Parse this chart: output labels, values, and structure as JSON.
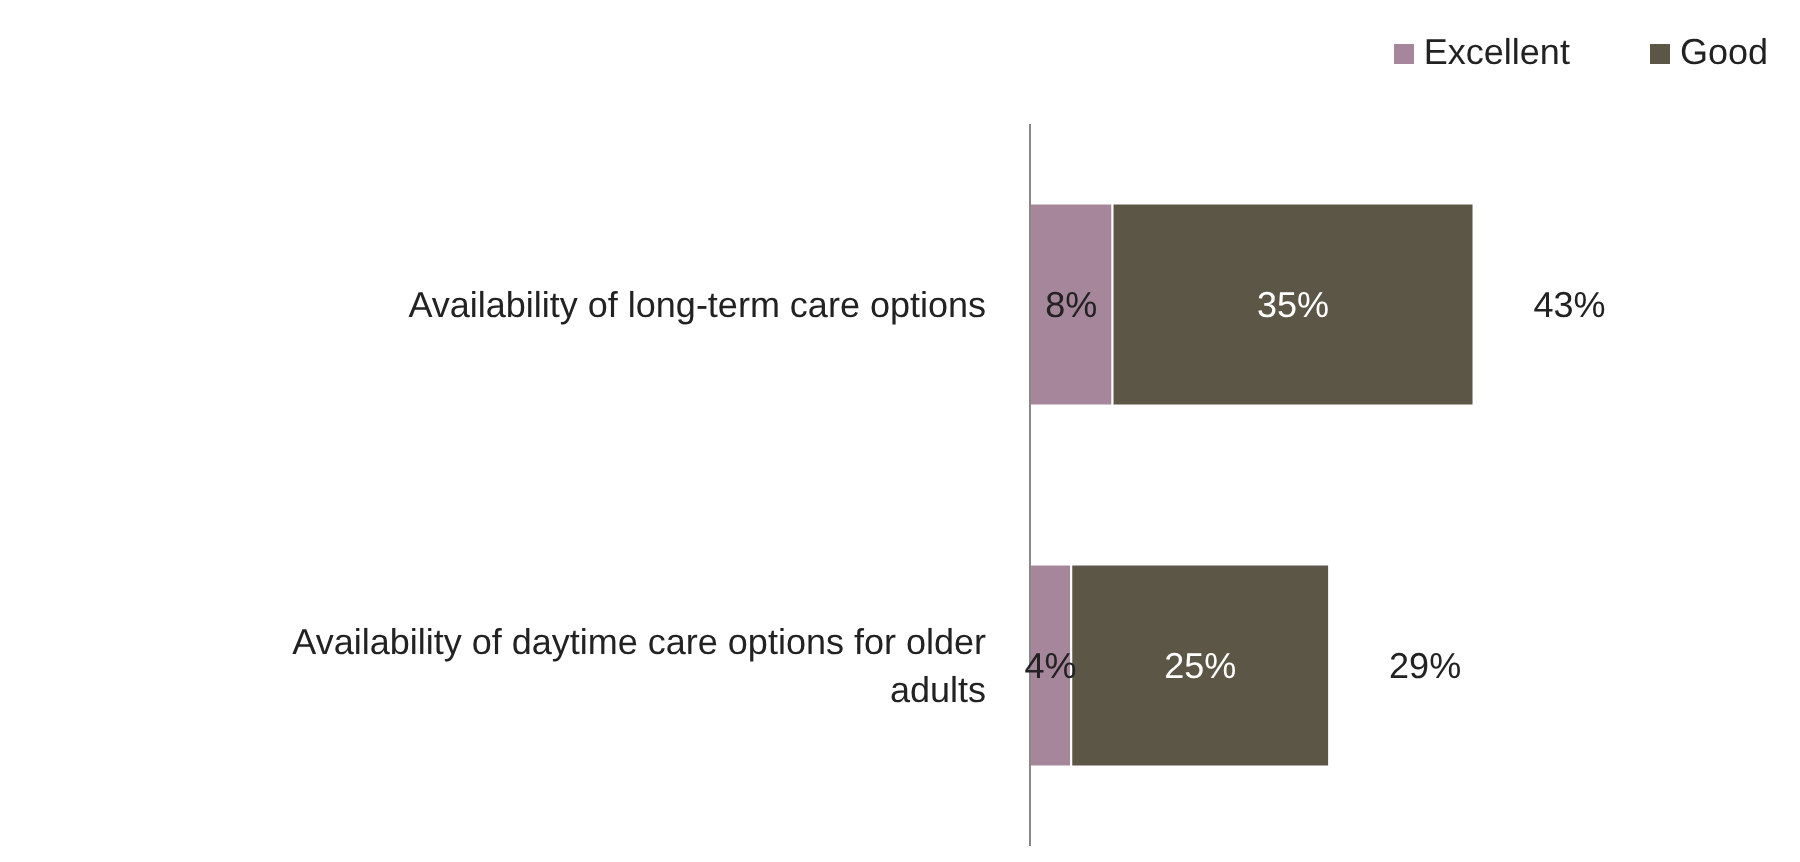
{
  "chart_data": {
    "type": "bar",
    "orientation": "horizontal",
    "stacked": true,
    "categories": [
      "Availability of long-term care options",
      "Availability of daytime care options for older adults"
    ],
    "series": [
      {
        "name": "Excellent",
        "color": "#a5869a",
        "values": [
          8,
          4
        ],
        "value_labels": [
          "8%",
          "4%"
        ]
      },
      {
        "name": "Good",
        "color": "#5c5646",
        "values": [
          35,
          25
        ],
        "value_labels": [
          "35%",
          "25%"
        ]
      }
    ],
    "totals": [
      "43%",
      "29%"
    ],
    "legend": "top right"
  }
}
